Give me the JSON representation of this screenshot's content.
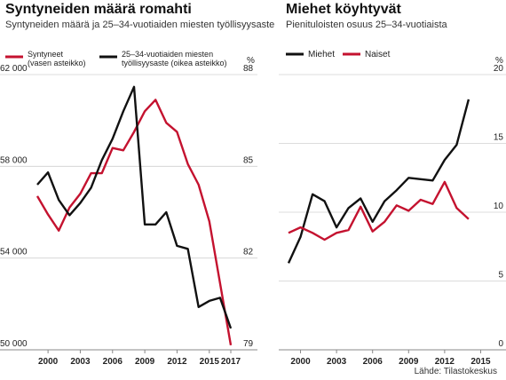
{
  "charts_meta": {
    "left_title": "Syntyneiden määrä romahti",
    "left_subtitle": "Syntyneiden määrä ja 25–34-vuotiaiden miesten työllisyysaste",
    "right_title": "Miehet köyhtyvät",
    "right_subtitle": "Pienituloisten osuus 25–34-vuotiaista",
    "source": "Lähde: Tilastokeskus"
  },
  "colors": {
    "red": "#c4122f",
    "black": "#111111",
    "grid": "#d0d0d0"
  },
  "chart_data": [
    {
      "type": "line",
      "title": "Syntyneiden määrä romahti",
      "subtitle": "Syntyneiden määrä ja 25–34-vuotiaiden miesten työllisyysaste",
      "x": [
        1999,
        2000,
        2001,
        2002,
        2003,
        2004,
        2005,
        2006,
        2007,
        2008,
        2009,
        2010,
        2011,
        2012,
        2013,
        2014,
        2015,
        2016,
        2017
      ],
      "x_ticks": [
        2000,
        2003,
        2006,
        2009,
        2012,
        2015,
        2017
      ],
      "xlim": [
        1999,
        2017
      ],
      "y_left": {
        "lim": [
          50000,
          62000
        ],
        "ticks": [
          "50 000",
          "54 000",
          "58 000",
          "62 000"
        ],
        "tick_values": [
          50000,
          54000,
          58000,
          62000
        ]
      },
      "y_right": {
        "lim": [
          79,
          88
        ],
        "ticks": [
          "79",
          "82",
          "85",
          "88"
        ],
        "tick_values": [
          79,
          82,
          85,
          88
        ],
        "unit": "%"
      },
      "grid": true,
      "legend_position": "top",
      "series": [
        {
          "name": "Syntyneet\n(vasen asteikko)",
          "legend_lines": [
            "Syntyneet",
            "(vasen asteikko)"
          ],
          "axis": "left",
          "color": "red",
          "values": [
            56700,
            55900,
            55200,
            56200,
            56800,
            57700,
            57700,
            58800,
            58700,
            59500,
            60400,
            60900,
            59900,
            59500,
            58100,
            57200,
            55600,
            52900,
            50200
          ]
        },
        {
          "name": "25–34-vuotiaiden miesten\ntyöllisyysaste (oikea asteikko)",
          "legend_lines": [
            "25–34-vuotiaiden miesten",
            "työllisyysaste (oikea asteikko)"
          ],
          "axis": "right",
          "color": "black",
          "values": [
            84.4,
            84.8,
            83.9,
            83.4,
            83.8,
            84.3,
            85.2,
            85.9,
            86.8,
            87.6,
            83.1,
            83.1,
            83.5,
            82.4,
            82.3,
            80.4,
            80.6,
            80.7,
            79.7
          ]
        }
      ]
    },
    {
      "type": "line",
      "title": "Miehet köyhtyvät",
      "subtitle": "Pienituloisten osuus 25–34-vuotiaista",
      "x": [
        1999,
        2000,
        2001,
        2002,
        2003,
        2004,
        2005,
        2006,
        2007,
        2008,
        2009,
        2010,
        2011,
        2012,
        2013,
        2014,
        2015,
        2016
      ],
      "x_ticks": [
        2000,
        2003,
        2006,
        2009,
        2012,
        2015
      ],
      "xlim": [
        1999,
        2016
      ],
      "y": {
        "lim": [
          0,
          20
        ],
        "ticks": [
          "0",
          "5",
          "10",
          "15",
          "20"
        ],
        "tick_values": [
          0,
          5,
          10,
          15,
          20
        ],
        "unit": "%"
      },
      "grid": true,
      "legend_position": "top-left",
      "series": [
        {
          "name": "Miehet",
          "color": "black",
          "values": [
            6.3,
            8.2,
            11.3,
            10.8,
            8.9,
            10.3,
            11.0,
            9.3,
            10.8,
            11.6,
            12.5,
            12.4,
            12.3,
            13.8,
            14.9,
            18.2,
            null,
            null
          ]
        },
        {
          "name": "Naiset",
          "color": "red",
          "values": [
            8.5,
            8.9,
            8.5,
            8.0,
            8.5,
            8.7,
            10.4,
            8.6,
            9.3,
            10.5,
            10.1,
            10.9,
            10.6,
            12.2,
            10.3,
            9.5,
            null,
            null
          ]
        }
      ]
    }
  ]
}
